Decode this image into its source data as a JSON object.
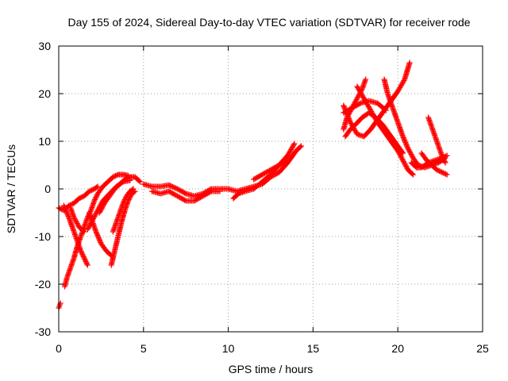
{
  "chart_data": {
    "type": "scatter",
    "title": "Day 155 of 2024, Sidereal Day-to-day VTEC variation (SDTVAR) for receiver rode",
    "xlabel": "GPS time / hours",
    "ylabel": "SDTVAR / TECUs",
    "xlim": [
      0,
      25
    ],
    "ylim": [
      -30,
      30
    ],
    "xticks": [
      0,
      5,
      10,
      15,
      20,
      25
    ],
    "yticks": [
      -30,
      -20,
      -10,
      0,
      10,
      20,
      30
    ],
    "grid": true,
    "marker": "plus",
    "color": "#ff0000",
    "series": [
      {
        "points": [
          [
            0.0,
            -25.0
          ],
          [
            0.1,
            -24.0
          ]
        ]
      },
      {
        "points": [
          [
            0.35,
            -20.5
          ],
          [
            0.5,
            -18.5
          ],
          [
            0.7,
            -16.5
          ],
          [
            0.9,
            -14.5
          ],
          [
            1.1,
            -12.0
          ],
          [
            1.3,
            -10.0
          ],
          [
            1.5,
            -8.0
          ],
          [
            1.7,
            -6.0
          ],
          [
            1.9,
            -4.5
          ],
          [
            2.1,
            -2.5
          ],
          [
            2.3,
            -1.0
          ],
          [
            2.6,
            0.5
          ],
          [
            2.9,
            1.5
          ],
          [
            3.2,
            2.5
          ],
          [
            3.5,
            3.0
          ],
          [
            3.8,
            3.0
          ],
          [
            4.1,
            2.8
          ]
        ]
      },
      {
        "points": [
          [
            0.0,
            -4.0
          ],
          [
            0.3,
            -4.5
          ],
          [
            0.6,
            -3.5
          ],
          [
            0.9,
            -3.0
          ],
          [
            1.2,
            -2.0
          ],
          [
            1.5,
            -1.5
          ],
          [
            1.8,
            -0.5
          ],
          [
            2.1,
            0.0
          ],
          [
            2.3,
            0.5
          ]
        ]
      },
      {
        "points": [
          [
            0.3,
            -3.5
          ],
          [
            0.6,
            -6.0
          ],
          [
            0.9,
            -9.0
          ],
          [
            1.1,
            -11.0
          ],
          [
            1.3,
            -13.0
          ],
          [
            1.5,
            -14.5
          ],
          [
            1.7,
            -16.0
          ]
        ]
      },
      {
        "points": [
          [
            0.7,
            -4.0
          ],
          [
            0.9,
            -6.0
          ],
          [
            1.2,
            -8.0
          ],
          [
            1.5,
            -9.0
          ]
        ]
      },
      {
        "points": [
          [
            1.8,
            -5.0
          ],
          [
            2.0,
            -7.0
          ],
          [
            2.2,
            -9.0
          ],
          [
            2.5,
            -11.5
          ],
          [
            2.8,
            -13.0
          ],
          [
            3.1,
            -14.0
          ]
        ]
      },
      {
        "points": [
          [
            1.7,
            -8.5
          ],
          [
            2.0,
            -6.5
          ],
          [
            2.3,
            -4.5
          ],
          [
            2.6,
            -2.5
          ],
          [
            3.0,
            -1.0
          ],
          [
            3.4,
            0.5
          ],
          [
            3.8,
            1.5
          ],
          [
            4.2,
            1.8
          ]
        ]
      },
      {
        "points": [
          [
            3.1,
            -16.0
          ],
          [
            3.3,
            -13.0
          ],
          [
            3.5,
            -10.0
          ],
          [
            3.7,
            -7.0
          ],
          [
            3.9,
            -4.5
          ],
          [
            4.1,
            -2.5
          ],
          [
            4.3,
            -1.0
          ],
          [
            4.5,
            -0.5
          ]
        ]
      },
      {
        "points": [
          [
            3.2,
            -9.0
          ],
          [
            3.4,
            -7.0
          ],
          [
            3.6,
            -5.0
          ],
          [
            3.8,
            -3.0
          ],
          [
            4.0,
            -1.5
          ],
          [
            4.2,
            -0.5
          ],
          [
            4.4,
            0.0
          ]
        ]
      },
      {
        "points": [
          [
            2.4,
            -5.0
          ],
          [
            2.7,
            -3.0
          ],
          [
            3.0,
            -1.5
          ],
          [
            3.3,
            0.0
          ],
          [
            3.6,
            1.0
          ],
          [
            3.9,
            2.0
          ],
          [
            4.2,
            2.5
          ],
          [
            4.5,
            2.5
          ],
          [
            4.8,
            1.5
          ]
        ]
      },
      {
        "points": [
          [
            5.0,
            1.0
          ],
          [
            5.5,
            0.5
          ],
          [
            6.0,
            0.5
          ],
          [
            6.5,
            0.8
          ],
          [
            7.0,
            0.0
          ],
          [
            7.5,
            -1.0
          ],
          [
            8.0,
            -1.5
          ],
          [
            8.5,
            -1.0
          ],
          [
            9.0,
            0.0
          ],
          [
            9.5,
            0.0
          ],
          [
            10.0,
            0.0
          ],
          [
            10.5,
            -0.5
          ],
          [
            11.0,
            0.0
          ],
          [
            11.5,
            0.5
          ],
          [
            12.0,
            1.0
          ],
          [
            12.5,
            2.5
          ],
          [
            13.0,
            3.5
          ],
          [
            13.5,
            5.5
          ],
          [
            14.0,
            8.0
          ],
          [
            14.3,
            9.0
          ]
        ]
      },
      {
        "points": [
          [
            5.5,
            -0.5
          ],
          [
            6.0,
            -1.0
          ],
          [
            6.5,
            -0.5
          ],
          [
            7.0,
            -1.5
          ],
          [
            7.5,
            -2.5
          ],
          [
            8.0,
            -2.5
          ],
          [
            8.5,
            -1.5
          ],
          [
            9.0,
            -0.5
          ],
          [
            9.5,
            -0.5
          ]
        ]
      },
      {
        "points": [
          [
            10.3,
            -2.0
          ],
          [
            10.6,
            -1.0
          ],
          [
            11.0,
            -0.5
          ],
          [
            11.5,
            0.0
          ],
          [
            12.0,
            1.5
          ],
          [
            12.5,
            3.0
          ],
          [
            13.0,
            5.0
          ],
          [
            13.5,
            7.0
          ],
          [
            13.9,
            9.5
          ]
        ]
      },
      {
        "points": [
          [
            11.5,
            2.0
          ],
          [
            12.0,
            3.0
          ],
          [
            12.5,
            4.0
          ],
          [
            13.0,
            5.0
          ],
          [
            13.5,
            6.0
          ]
        ]
      },
      {
        "points": [
          [
            16.8,
            12.5
          ],
          [
            17.0,
            15.0
          ],
          [
            17.3,
            17.0
          ],
          [
            17.6,
            19.0
          ],
          [
            17.9,
            21.0
          ],
          [
            18.1,
            23.0
          ]
        ]
      },
      {
        "points": [
          [
            16.8,
            17.5
          ],
          [
            17.2,
            14.0
          ],
          [
            17.6,
            11.5
          ],
          [
            18.0,
            11.0
          ],
          [
            18.4,
            12.5
          ],
          [
            18.8,
            14.5
          ],
          [
            19.2,
            16.5
          ],
          [
            19.6,
            18.5
          ],
          [
            20.0,
            20.5
          ],
          [
            20.4,
            23.0
          ],
          [
            20.7,
            26.5
          ]
        ]
      },
      {
        "points": [
          [
            16.9,
            11.0
          ],
          [
            17.2,
            12.5
          ],
          [
            17.5,
            13.5
          ],
          [
            17.9,
            15.0
          ],
          [
            18.3,
            16.0
          ],
          [
            18.7,
            15.0
          ],
          [
            19.1,
            13.5
          ],
          [
            19.5,
            11.5
          ],
          [
            19.9,
            9.5
          ],
          [
            20.3,
            7.5
          ]
        ]
      },
      {
        "points": [
          [
            16.8,
            16.0
          ],
          [
            17.3,
            17.0
          ],
          [
            17.8,
            18.0
          ],
          [
            18.3,
            18.5
          ],
          [
            18.8,
            18.0
          ],
          [
            19.3,
            16.5
          ]
        ]
      },
      {
        "points": [
          [
            17.6,
            21.5
          ],
          [
            18.0,
            19.0
          ],
          [
            18.4,
            16.5
          ],
          [
            18.8,
            14.0
          ],
          [
            19.2,
            12.0
          ],
          [
            19.6,
            10.0
          ],
          [
            20.0,
            8.0
          ],
          [
            20.3,
            6.0
          ],
          [
            20.6,
            4.0
          ],
          [
            20.9,
            3.0
          ]
        ]
      },
      {
        "points": [
          [
            19.2,
            23.0
          ],
          [
            19.4,
            20.0
          ],
          [
            19.7,
            17.0
          ],
          [
            20.0,
            14.0
          ],
          [
            20.3,
            11.0
          ],
          [
            20.6,
            8.5
          ],
          [
            20.9,
            6.5
          ],
          [
            21.2,
            5.0
          ],
          [
            21.6,
            4.5
          ],
          [
            22.0,
            5.0
          ],
          [
            22.4,
            5.5
          ],
          [
            22.8,
            6.5
          ]
        ]
      },
      {
        "points": [
          [
            20.8,
            5.5
          ],
          [
            21.1,
            4.5
          ],
          [
            21.4,
            4.5
          ],
          [
            21.8,
            5.5
          ],
          [
            22.2,
            6.0
          ],
          [
            22.6,
            6.5
          ],
          [
            22.9,
            7.0
          ]
        ]
      },
      {
        "points": [
          [
            21.8,
            15.0
          ],
          [
            22.0,
            13.0
          ],
          [
            22.2,
            11.0
          ],
          [
            22.4,
            9.0
          ],
          [
            22.6,
            7.0
          ],
          [
            22.8,
            5.5
          ]
        ]
      },
      {
        "points": [
          [
            21.4,
            7.5
          ],
          [
            21.7,
            6.0
          ],
          [
            22.0,
            5.0
          ],
          [
            22.3,
            4.0
          ],
          [
            22.6,
            3.5
          ],
          [
            22.9,
            3.0
          ]
        ]
      }
    ]
  }
}
